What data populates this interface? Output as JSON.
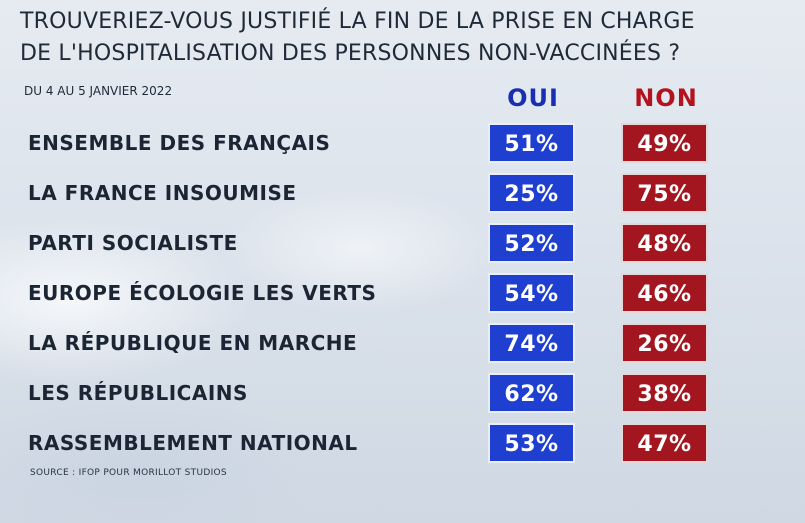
{
  "header": {
    "title_line_1": "TROUVERIEZ-VOUS JUSTIFIÉ LA FIN DE LA PRISE EN CHARGE",
    "title_line_2": "DE L'HOSPITALISATION DES PERSONNES NON-VACCINÉES ?",
    "date": "DU 4 AU 5 JANVIER 2022"
  },
  "columns": {
    "oui": "OUI",
    "non": "NON"
  },
  "colors": {
    "oui": "#1f3fd0",
    "non": "#a3161f"
  },
  "source": "SOURCE : IFOP POUR MORILLOT STUDIOS",
  "chart_data": {
    "type": "table",
    "title": "TROUVERIEZ-VOUS JUSTIFIÉ LA FIN DE LA PRISE EN CHARGE DE L'HOSPITALISATION DES PERSONNES NON-VACCINÉES ?",
    "subtitle": "DU 4 AU 5 JANVIER 2022",
    "categories": [
      "ENSEMBLE DES FRANÇAIS",
      "LA FRANCE INSOUMISE",
      "PARTI SOCIALISTE",
      "EUROPE ÉCOLOGIE LES VERTS",
      "LA RÉPUBLIQUE EN MARCHE",
      "LES RÉPUBLICAINS",
      "RASSEMBLEMENT NATIONAL"
    ],
    "series": [
      {
        "name": "OUI",
        "values": [
          51,
          25,
          52,
          54,
          74,
          62,
          53
        ]
      },
      {
        "name": "NON",
        "values": [
          49,
          75,
          48,
          46,
          26,
          38,
          47
        ]
      }
    ],
    "unit": "%"
  }
}
